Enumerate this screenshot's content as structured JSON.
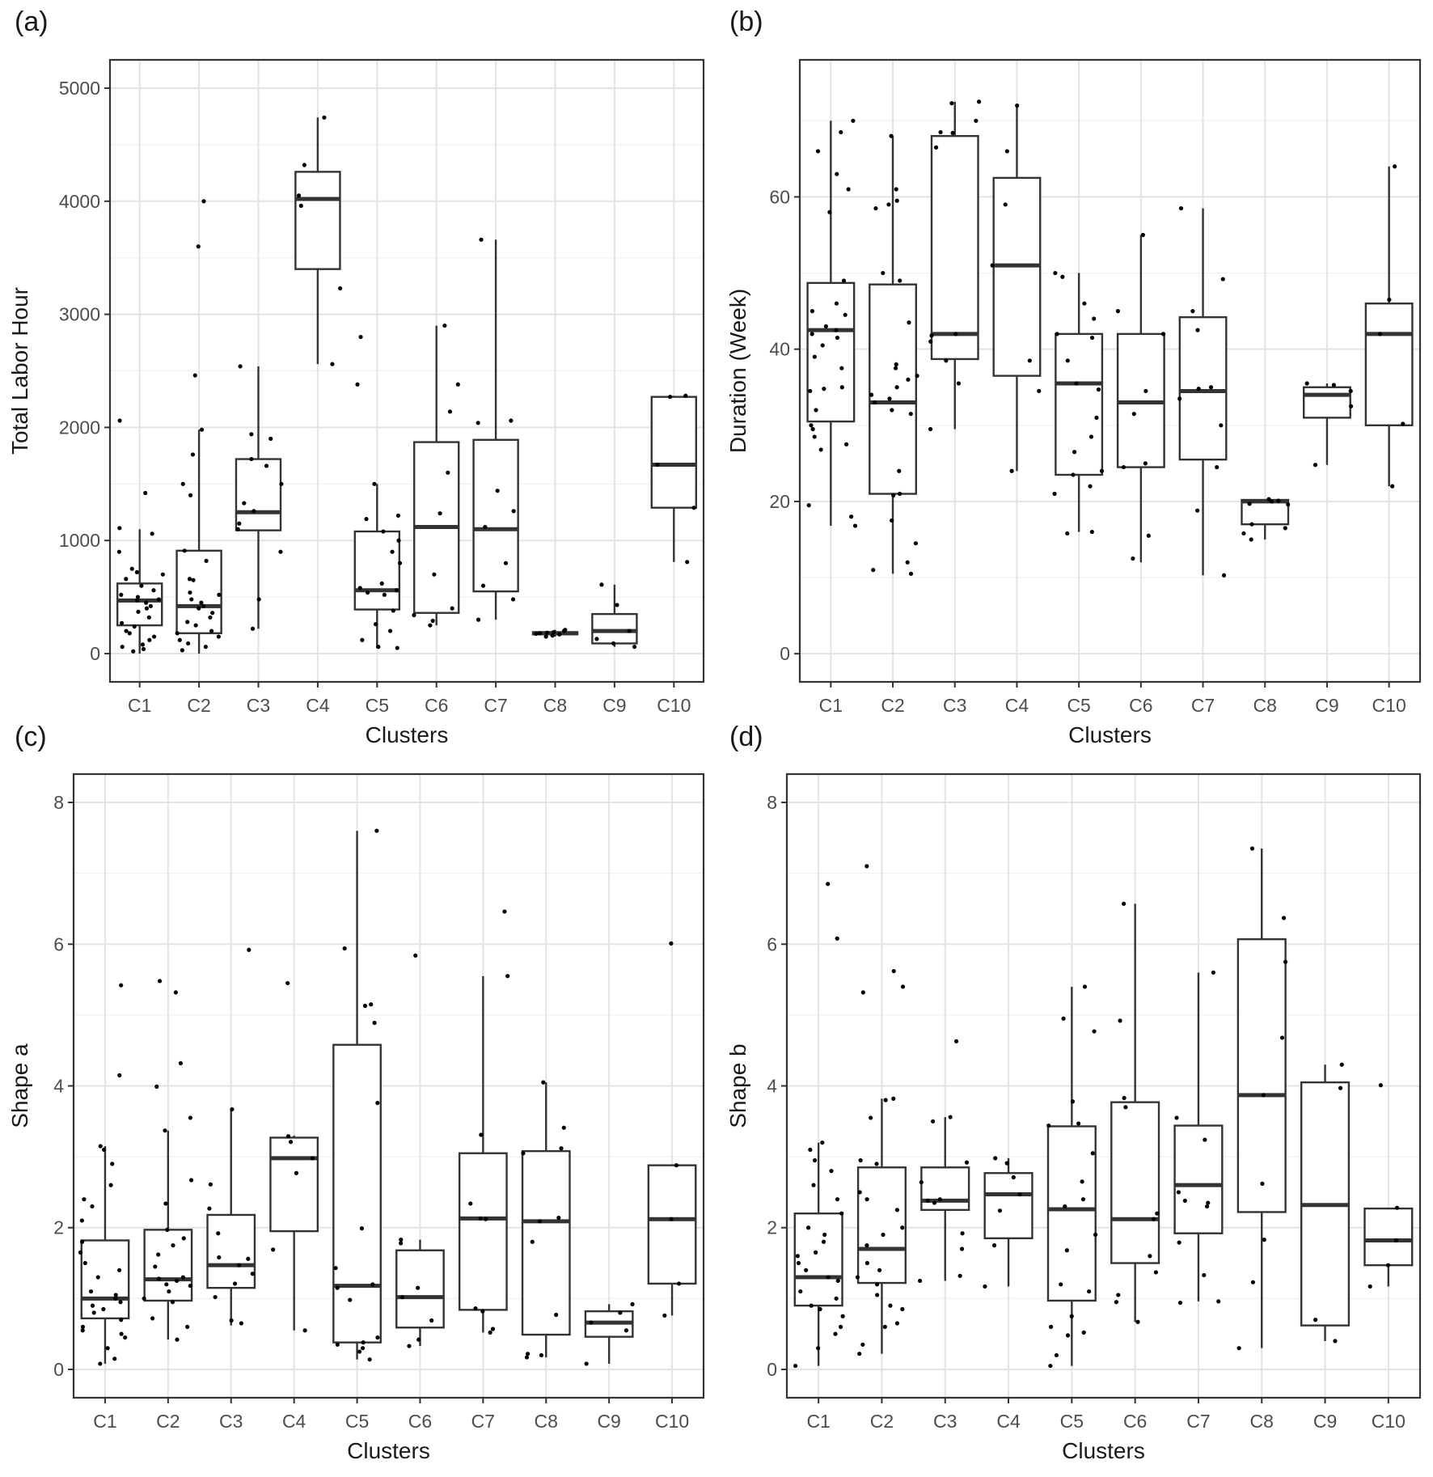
{
  "chart_data": [
    {
      "panel": "(a)",
      "type": "boxplot",
      "xlabel": "Clusters",
      "ylabel": "Total Labor Hour",
      "ylim": [
        -250,
        5250
      ],
      "yticks": [
        0,
        1000,
        2000,
        3000,
        4000,
        5000
      ],
      "categories": [
        "C1",
        "C2",
        "C3",
        "C4",
        "C5",
        "C6",
        "C7",
        "C8",
        "C9",
        "C10"
      ],
      "boxes": [
        {
          "min": 0,
          "q1": 250,
          "median": 470,
          "q3": 620,
          "max": 1100
        },
        {
          "min": 0,
          "q1": 180,
          "median": 420,
          "q3": 910,
          "max": 1980
        },
        {
          "min": 220,
          "q1": 1090,
          "median": 1250,
          "q3": 1720,
          "max": 2540
        },
        {
          "min": 2560,
          "q1": 3400,
          "median": 4020,
          "q3": 4260,
          "max": 4740
        },
        {
          "min": 50,
          "q1": 390,
          "median": 560,
          "q3": 1080,
          "max": 1500
        },
        {
          "min": 250,
          "q1": 360,
          "median": 1120,
          "q3": 1870,
          "max": 2900
        },
        {
          "min": 300,
          "q1": 550,
          "median": 1100,
          "q3": 1890,
          "max": 3660
        },
        {
          "min": 150,
          "q1": 170,
          "median": 180,
          "q3": 190,
          "max": 210
        },
        {
          "min": 60,
          "q1": 90,
          "median": 200,
          "q3": 350,
          "max": 610
        },
        {
          "min": 810,
          "q1": 1290,
          "median": 1670,
          "q3": 2270,
          "max": 2280
        }
      ],
      "points": [
        [
          2060,
          1420,
          1110,
          1060,
          900,
          750,
          720,
          700,
          660,
          600,
          560,
          520,
          500,
          480,
          470,
          450,
          420,
          400,
          370,
          320,
          270,
          240,
          200,
          180,
          150,
          120,
          80,
          60,
          40,
          20
        ],
        [
          4000,
          3600,
          2460,
          1980,
          1760,
          1500,
          1400,
          910,
          820,
          660,
          650,
          540,
          520,
          480,
          450,
          420,
          400,
          360,
          320,
          280,
          250,
          200,
          180,
          150,
          120,
          90,
          60,
          30
        ],
        [
          2540,
          1940,
          1900,
          1720,
          1660,
          1500,
          1330,
          1260,
          1150,
          1100,
          900,
          480,
          220
        ],
        [
          4740,
          4320,
          4050,
          3960,
          3230,
          2560
        ],
        [
          2800,
          2380,
          1500,
          1220,
          1190,
          1080,
          1000,
          900,
          800,
          620,
          580,
          560,
          540,
          520,
          380,
          260,
          200,
          120,
          60,
          50
        ],
        [
          2900,
          2380,
          2140,
          1600,
          1240,
          700,
          400,
          340,
          290,
          250
        ],
        [
          3660,
          2060,
          2040,
          1440,
          1260,
          1120,
          800,
          600,
          480,
          300
        ],
        [
          210,
          200,
          190,
          185,
          180,
          175,
          170,
          160,
          150
        ],
        [
          610,
          430,
          200,
          130,
          90,
          60
        ],
        [
          2280,
          2270,
          1670,
          1290,
          810
        ]
      ]
    },
    {
      "panel": "(b)",
      "type": "boxplot",
      "xlabel": "Clusters",
      "ylabel": "Duration (Week)",
      "ylim": [
        -3.7,
        78
      ],
      "yticks": [
        0,
        20,
        40,
        60
      ],
      "categories": [
        "C1",
        "C2",
        "C3",
        "C4",
        "C5",
        "C6",
        "C7",
        "C8",
        "C9",
        "C10"
      ],
      "boxes": [
        {
          "min": 16.8,
          "q1": 30.5,
          "median": 42.5,
          "q3": 48.7,
          "max": 70
        },
        {
          "min": 10.5,
          "q1": 21,
          "median": 33,
          "q3": 48.5,
          "max": 68
        },
        {
          "min": 29.5,
          "q1": 38.7,
          "median": 42,
          "q3": 68,
          "max": 72.5
        },
        {
          "min": 24,
          "q1": 36.5,
          "median": 51,
          "q3": 62.5,
          "max": 72
        },
        {
          "min": 16,
          "q1": 23.5,
          "median": 35.5,
          "q3": 42,
          "max": 50
        },
        {
          "min": 12,
          "q1": 24.5,
          "median": 33,
          "q3": 42,
          "max": 55
        },
        {
          "min": 10.3,
          "q1": 25.5,
          "median": 34.5,
          "q3": 44.2,
          "max": 58.5
        },
        {
          "min": 15,
          "q1": 17,
          "median": 20,
          "q3": 20.2,
          "max": 20.3
        },
        {
          "min": 24.8,
          "q1": 31,
          "median": 34,
          "q3": 35,
          "max": 35.5
        },
        {
          "min": 22,
          "q1": 30,
          "median": 42,
          "q3": 46,
          "max": 64
        }
      ],
      "points": [
        [
          70,
          68.5,
          66,
          63,
          61,
          58,
          49,
          46,
          45,
          44.5,
          43,
          42.5,
          42,
          41.5,
          40.5,
          39,
          37.5,
          35,
          34.8,
          34.5,
          32,
          30,
          29.5,
          28.5,
          27.5,
          26.8,
          19.5,
          18,
          16.8
        ],
        [
          68,
          61,
          59.5,
          59,
          58.5,
          50,
          49,
          43.5,
          38,
          37.5,
          36.5,
          36,
          35,
          34,
          33.5,
          33,
          32,
          31.5,
          24,
          21,
          20.8,
          17.5,
          14.5,
          12,
          11,
          10.5
        ],
        [
          72.5,
          72.3,
          70,
          68.5,
          68.4,
          66.5,
          42,
          41.8,
          41,
          38.5,
          35.5,
          29.5
        ],
        [
          72,
          66,
          59,
          51,
          38.5,
          34.5,
          24
        ],
        [
          50,
          49.5,
          46,
          44,
          42,
          41.5,
          38.5,
          35.5,
          34.7,
          31,
          28.5,
          26.5,
          24,
          23.5,
          22,
          21,
          16,
          15.8
        ],
        [
          55,
          45,
          42,
          34.5,
          31.5,
          25,
          24.5,
          15.5,
          12.5
        ],
        [
          58.5,
          49.2,
          45,
          42.5,
          35,
          34.8,
          33.5,
          30,
          24.5,
          18.8,
          10.3
        ],
        [
          20.3,
          20.1,
          20,
          19.7,
          19.6,
          17,
          16.5,
          15.8,
          15
        ],
        [
          35.5,
          35.3,
          34.5,
          32.5,
          24.8
        ],
        [
          64,
          46.5,
          42,
          30.2,
          22
        ]
      ]
    },
    {
      "panel": "(c)",
      "type": "boxplot",
      "xlabel": "Clusters",
      "ylabel": "Shape a",
      "ylim": [
        -0.4,
        8.4
      ],
      "yticks": [
        0,
        2,
        4,
        6,
        8
      ],
      "categories": [
        "C1",
        "C2",
        "C3",
        "C4",
        "C5",
        "C6",
        "C7",
        "C8",
        "C9",
        "C10"
      ],
      "boxes": [
        {
          "min": 0.08,
          "q1": 0.72,
          "median": 1.0,
          "q3": 1.82,
          "max": 3.15
        },
        {
          "min": 0.42,
          "q1": 0.97,
          "median": 1.27,
          "q3": 1.97,
          "max": 3.37
        },
        {
          "min": 0.62,
          "q1": 1.15,
          "median": 1.47,
          "q3": 2.18,
          "max": 3.67
        },
        {
          "min": 0.55,
          "q1": 1.95,
          "median": 2.98,
          "q3": 3.27,
          "max": 3.3
        },
        {
          "min": 0.14,
          "q1": 0.38,
          "median": 1.18,
          "q3": 4.58,
          "max": 7.6
        },
        {
          "min": 0.33,
          "q1": 0.59,
          "median": 1.02,
          "q3": 1.68,
          "max": 1.83
        },
        {
          "min": 0.52,
          "q1": 0.84,
          "median": 2.13,
          "q3": 3.05,
          "max": 5.55
        },
        {
          "min": 0.17,
          "q1": 0.49,
          "median": 2.09,
          "q3": 3.08,
          "max": 4.05
        },
        {
          "min": 0.08,
          "q1": 0.46,
          "median": 0.66,
          "q3": 0.82,
          "max": 0.92
        },
        {
          "min": 0.76,
          "q1": 1.21,
          "median": 2.12,
          "q3": 2.88,
          "max": 2.89
        }
      ],
      "points": [
        [
          5.42,
          4.15,
          3.15,
          3.1,
          2.9,
          2.6,
          2.4,
          2.3,
          2.1,
          1.8,
          1.65,
          1.5,
          1.4,
          1.3,
          1.1,
          1.05,
          1.0,
          0.95,
          0.9,
          0.85,
          0.8,
          0.7,
          0.6,
          0.55,
          0.5,
          0.45,
          0.3,
          0.15,
          0.08
        ],
        [
          5.48,
          5.32,
          4.32,
          3.99,
          3.55,
          3.37,
          2.67,
          2.34,
          1.97,
          1.85,
          1.75,
          1.62,
          1.45,
          1.3,
          1.28,
          1.25,
          1.2,
          1.18,
          1.1,
          1.0,
          0.95,
          0.72,
          0.6,
          0.42
        ],
        [
          5.92,
          3.67,
          2.61,
          2.27,
          1.92,
          1.58,
          1.56,
          1.47,
          1.35,
          1.21,
          1.02,
          0.69,
          0.65
        ],
        [
          5.45,
          3.29,
          3.21,
          2.98,
          2.77,
          1.69,
          0.55
        ],
        [
          7.6,
          5.94,
          5.15,
          5.13,
          4.89,
          3.76,
          1.99,
          1.43,
          1.2,
          1.15,
          0.98,
          0.45,
          0.38,
          0.35,
          0.3,
          0.25,
          0.14
        ],
        [
          5.84,
          1.83,
          1.78,
          1.15,
          1.02,
          0.69,
          0.42,
          0.33
        ],
        [
          6.46,
          5.55,
          3.31,
          2.34,
          2.13,
          2.12,
          0.86,
          0.82,
          0.57,
          0.52
        ],
        [
          4.05,
          3.41,
          3.12,
          3.05,
          2.14,
          2.09,
          1.8,
          0.77,
          0.22,
          0.2,
          0.17
        ],
        [
          0.92,
          0.8,
          0.66,
          0.55,
          0.08
        ],
        [
          6.01,
          2.88,
          2.12,
          1.21,
          0.76
        ]
      ]
    },
    {
      "panel": "(d)",
      "type": "boxplot",
      "xlabel": "Clusters",
      "ylabel": "Shape b",
      "ylim": [
        -0.4,
        8.4
      ],
      "yticks": [
        0,
        2,
        4,
        6,
        8
      ],
      "categories": [
        "C1",
        "C2",
        "C3",
        "C4",
        "C5",
        "C6",
        "C7",
        "C8",
        "C9",
        "C10"
      ],
      "boxes": [
        {
          "min": 0.05,
          "q1": 0.9,
          "median": 1.3,
          "q3": 2.2,
          "max": 3.2
        },
        {
          "min": 0.22,
          "q1": 1.22,
          "median": 1.7,
          "q3": 2.85,
          "max": 3.82
        },
        {
          "min": 1.25,
          "q1": 2.25,
          "median": 2.38,
          "q3": 2.85,
          "max": 3.56
        },
        {
          "min": 1.17,
          "q1": 1.85,
          "median": 2.47,
          "q3": 2.77,
          "max": 2.98
        },
        {
          "min": 0.05,
          "q1": 0.97,
          "median": 2.26,
          "q3": 3.43,
          "max": 5.4
        },
        {
          "min": 0.67,
          "q1": 1.5,
          "median": 2.12,
          "q3": 3.77,
          "max": 6.57
        },
        {
          "min": 0.96,
          "q1": 1.92,
          "median": 2.6,
          "q3": 3.44,
          "max": 5.6
        },
        {
          "min": 0.3,
          "q1": 2.22,
          "median": 3.87,
          "q3": 6.07,
          "max": 7.35
        },
        {
          "min": 0.4,
          "q1": 0.62,
          "median": 2.32,
          "q3": 4.05,
          "max": 4.3
        },
        {
          "min": 1.17,
          "q1": 1.47,
          "median": 1.82,
          "q3": 2.27,
          "max": 2.28
        }
      ],
      "points": [
        [
          6.85,
          6.08,
          3.2,
          3.1,
          2.95,
          2.8,
          2.6,
          2.4,
          2.2,
          2.0,
          1.9,
          1.8,
          1.65,
          1.6,
          1.5,
          1.4,
          1.3,
          1.25,
          1.1,
          1.0,
          0.9,
          0.85,
          0.75,
          0.6,
          0.5,
          0.3,
          0.05
        ],
        [
          7.1,
          5.62,
          5.4,
          5.32,
          3.82,
          3.8,
          3.55,
          2.95,
          2.9,
          2.5,
          2.4,
          2.25,
          2.0,
          1.9,
          1.75,
          1.5,
          1.4,
          1.3,
          1.2,
          1.05,
          0.9,
          0.85,
          0.65,
          0.6,
          0.35,
          0.22
        ],
        [
          4.63,
          3.56,
          3.5,
          2.92,
          2.64,
          2.4,
          2.38,
          2.35,
          1.92,
          1.7,
          1.32,
          1.25
        ],
        [
          2.98,
          2.91,
          2.71,
          2.47,
          2.24,
          1.75,
          1.17
        ],
        [
          5.4,
          4.95,
          4.77,
          3.78,
          3.47,
          3.44,
          3.05,
          2.65,
          2.4,
          2.3,
          1.9,
          1.68,
          1.2,
          1.1,
          0.75,
          0.6,
          0.52,
          0.48,
          0.2,
          0.05
        ],
        [
          6.57,
          4.92,
          3.83,
          3.7,
          2.2,
          2.12,
          1.6,
          1.37,
          1.05,
          0.95,
          0.67
        ],
        [
          5.6,
          3.55,
          3.24,
          2.5,
          2.38,
          2.35,
          2.3,
          1.79,
          1.33,
          0.96,
          0.94
        ],
        [
          7.35,
          6.37,
          5.75,
          4.68,
          3.87,
          2.62,
          1.83,
          1.23,
          0.3
        ],
        [
          4.3,
          3.97,
          0.7,
          0.4
        ],
        [
          4.01,
          2.28,
          1.82,
          1.47,
          1.17
        ]
      ]
    }
  ]
}
